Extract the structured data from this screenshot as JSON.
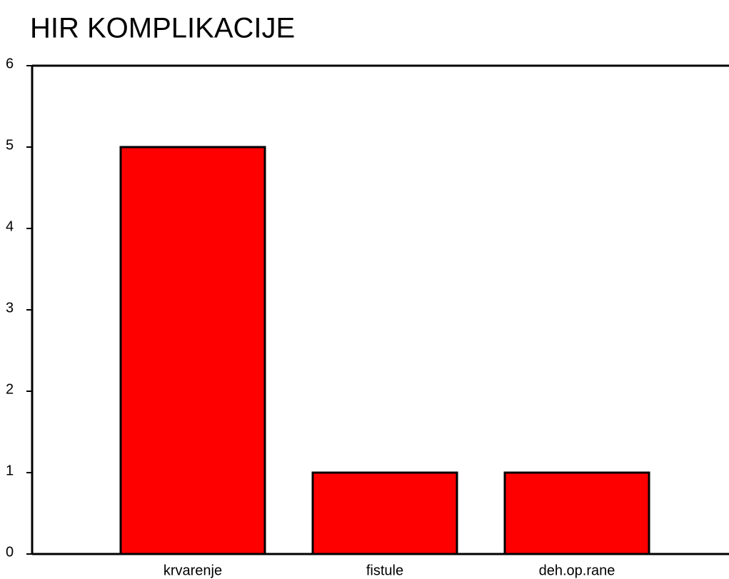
{
  "chart_data": {
    "type": "bar",
    "title": "HIR KOMPLIKACIJE",
    "categories": [
      "krvarenje",
      "fistule",
      "deh.op.rane"
    ],
    "values": [
      5,
      1,
      1
    ],
    "color": "#ff0000",
    "ylim": [
      0,
      6
    ],
    "yticks": [
      0,
      1,
      2,
      3,
      4,
      5,
      6
    ]
  }
}
